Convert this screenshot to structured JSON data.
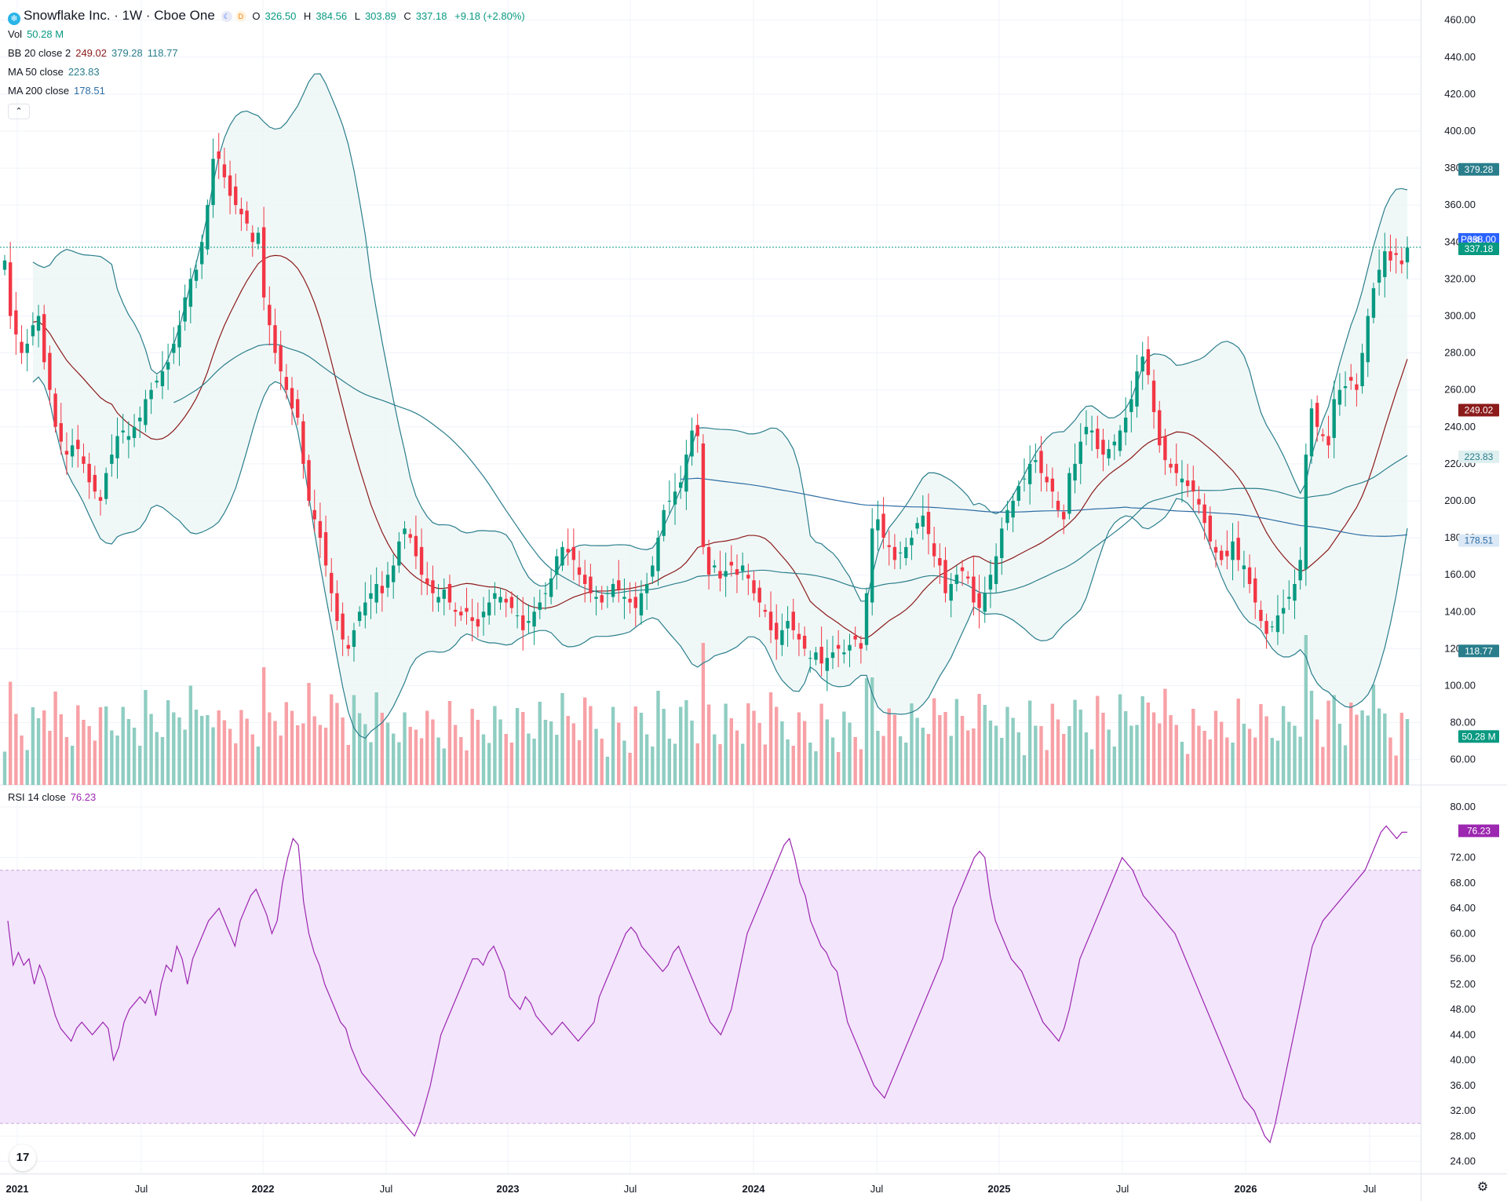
{
  "header": {
    "title": "Snowflake Inc. · 1W · Cboe One",
    "market_badge": "D",
    "ohlc": {
      "o_label": "O",
      "o": "326.50",
      "h_label": "H",
      "h": "384.56",
      "l_label": "L",
      "l": "303.89",
      "c_label": "C",
      "c": "337.18",
      "change": "+9.18 (+2.80%)"
    }
  },
  "indicators": {
    "vol": {
      "label": "Vol",
      "value": "50.28 M"
    },
    "bb": {
      "label": "BB 20 close 2",
      "basis": "249.02",
      "upper": "379.28",
      "lower": "118.77"
    },
    "ma50": {
      "label": "MA 50 close",
      "value": "223.83"
    },
    "ma200": {
      "label": "MA 200 close",
      "value": "178.51"
    },
    "rsi": {
      "label": "RSI 14 close",
      "value": "76.23"
    }
  },
  "colors": {
    "up": "#089981",
    "down": "#f23645",
    "bb": "#2a7e8c",
    "ma50": "#8b1a1a",
    "ma200": "#2e6da4",
    "rsi": "#9c27b0",
    "rsi_band": "#f3e5fc",
    "vol_up": "#8fcdc2",
    "vol_down": "#f7a1a6"
  },
  "labels": {
    "post": "Post",
    "post_price": "338.00",
    "last_price": "337.18"
  },
  "chart_data": [
    {
      "type": "candlestick",
      "title": "Snowflake Inc. · 1W · Cboe One",
      "y_ticks": [
        "460.00",
        "440.00",
        "420.00",
        "400.00",
        "380.00",
        "360.00",
        "340.00",
        "320.00",
        "300.00",
        "280.00",
        "260.00",
        "240.00",
        "220.00",
        "200.00",
        "180.00",
        "160.00",
        "140.00",
        "120.00",
        "100.00",
        "80.00",
        "60.00"
      ],
      "x_ticks": [
        "2021",
        "Jul",
        "2022",
        "Jul",
        "2023",
        "Jul",
        "2024",
        "Jul",
        "2025",
        "Jul",
        "2026",
        "Jul"
      ],
      "ylim": [
        56,
        462
      ],
      "weeks": 287,
      "closes": [
        330,
        300,
        290,
        280,
        285,
        295,
        300,
        275,
        260,
        240,
        232,
        225,
        230,
        228,
        220,
        210,
        205,
        200,
        215,
        225,
        235,
        238,
        235,
        240,
        245,
        255,
        260,
        265,
        270,
        275,
        285,
        295,
        310,
        320,
        325,
        340,
        360,
        385,
        385,
        375,
        365,
        360,
        355,
        350,
        340,
        345,
        310,
        295,
        280,
        270,
        260,
        250,
        245,
        220,
        200,
        190,
        180,
        165,
        150,
        135,
        125,
        120,
        130,
        140,
        145,
        150,
        155,
        150,
        160,
        165,
        178,
        185,
        180,
        170,
        160,
        155,
        150,
        148,
        152,
        145,
        140,
        138,
        140,
        135,
        132,
        140,
        145,
        150,
        148,
        145,
        142,
        138,
        130,
        135,
        140,
        145,
        150,
        158,
        170,
        175,
        172,
        168,
        160,
        155,
        150,
        148,
        145,
        150,
        155,
        152,
        148,
        145,
        142,
        150,
        155,
        165,
        180,
        195,
        200,
        205,
        210,
        225,
        238,
        235,
        175,
        160,
        165,
        158,
        162,
        165,
        160,
        165,
        158,
        150,
        145,
        140,
        130,
        125,
        130,
        135,
        130,
        125,
        120,
        115,
        118,
        112,
        115,
        118,
        120,
        118,
        122,
        125,
        120,
        150,
        185,
        190,
        180,
        175,
        168,
        172,
        175,
        180,
        188,
        192,
        182,
        170,
        165,
        150,
        155,
        160,
        162,
        158,
        145,
        142,
        150,
        160,
        170,
        185,
        195,
        200,
        208,
        212,
        220,
        222,
        215,
        210,
        205,
        195,
        190,
        215,
        220,
        232,
        240,
        238,
        228,
        225,
        228,
        232,
        238,
        245,
        255,
        270,
        278,
        268,
        248,
        230,
        222,
        218,
        215,
        212,
        208,
        205,
        198,
        188,
        178,
        172,
        168,
        170,
        178,
        168,
        165,
        155,
        145,
        135,
        128,
        132,
        138,
        142,
        148,
        155,
        168,
        225,
        250,
        240,
        235,
        230,
        255,
        260,
        262,
        265,
        260,
        280,
        300,
        315,
        325,
        335,
        330,
        333,
        328,
        337
      ],
      "bb_upper": [],
      "bb_basis": [],
      "bb_lower": []
    },
    {
      "type": "line",
      "title": "RSI 14 close",
      "y_ticks": [
        "80.00",
        "72.00",
        "68.00",
        "64.00",
        "60.00",
        "56.00",
        "52.00",
        "48.00",
        "44.00",
        "40.00",
        "36.00",
        "32.00",
        "28.00",
        "24.00"
      ],
      "ylim": [
        22.5,
        81
      ],
      "band": [
        30,
        70
      ],
      "values": [
        62,
        55,
        57,
        55,
        56,
        52,
        55,
        53,
        50,
        47,
        45,
        44,
        43,
        45,
        46,
        45,
        44,
        45,
        46,
        45,
        40,
        42,
        46,
        48,
        49,
        50,
        49,
        51,
        47,
        52,
        55,
        54,
        58,
        56,
        52,
        56,
        58,
        60,
        62,
        63,
        64,
        62,
        60,
        58,
        62,
        64,
        66,
        67,
        65,
        63,
        60,
        62,
        68,
        72,
        75,
        74,
        65,
        60,
        57,
        55,
        52,
        50,
        48,
        46,
        45,
        42,
        40,
        38,
        37,
        36,
        35,
        34,
        33,
        32,
        31,
        30,
        29,
        28,
        30,
        33,
        36,
        40,
        44,
        46,
        48,
        50,
        52,
        54,
        56,
        56,
        55,
        57,
        58,
        56,
        54,
        50,
        49,
        48,
        50,
        49,
        47,
        46,
        45,
        44,
        45,
        46,
        45,
        44,
        43,
        44,
        45,
        46,
        50,
        52,
        54,
        56,
        58,
        60,
        61,
        60,
        58,
        57,
        56,
        55,
        54,
        55,
        57,
        58,
        56,
        54,
        52,
        50,
        48,
        46,
        45,
        44,
        46,
        48,
        52,
        56,
        60,
        62,
        64,
        66,
        68,
        70,
        72,
        74,
        75,
        72,
        68,
        66,
        62,
        60,
        58,
        57,
        55,
        54,
        50,
        46,
        44,
        42,
        40,
        38,
        36,
        35,
        34,
        36,
        38,
        40,
        42,
        44,
        46,
        48,
        50,
        52,
        54,
        56,
        60,
        64,
        66,
        68,
        70,
        72,
        73,
        72,
        66,
        62,
        60,
        58,
        56,
        55,
        54,
        52,
        50,
        48,
        46,
        45,
        44,
        43,
        45,
        48,
        52,
        56,
        58,
        60,
        62,
        64,
        66,
        68,
        70,
        72,
        71,
        70,
        68,
        66,
        65,
        64,
        63,
        62,
        61,
        60,
        58,
        56,
        54,
        52,
        50,
        48,
        46,
        44,
        42,
        40,
        38,
        36,
        34,
        33,
        32,
        30,
        28,
        27,
        30,
        34,
        38,
        42,
        46,
        50,
        54,
        58,
        60,
        62,
        63,
        64,
        65,
        66,
        67,
        68,
        69,
        70,
        72,
        74,
        76,
        77,
        76,
        75,
        76,
        76
      ]
    }
  ]
}
